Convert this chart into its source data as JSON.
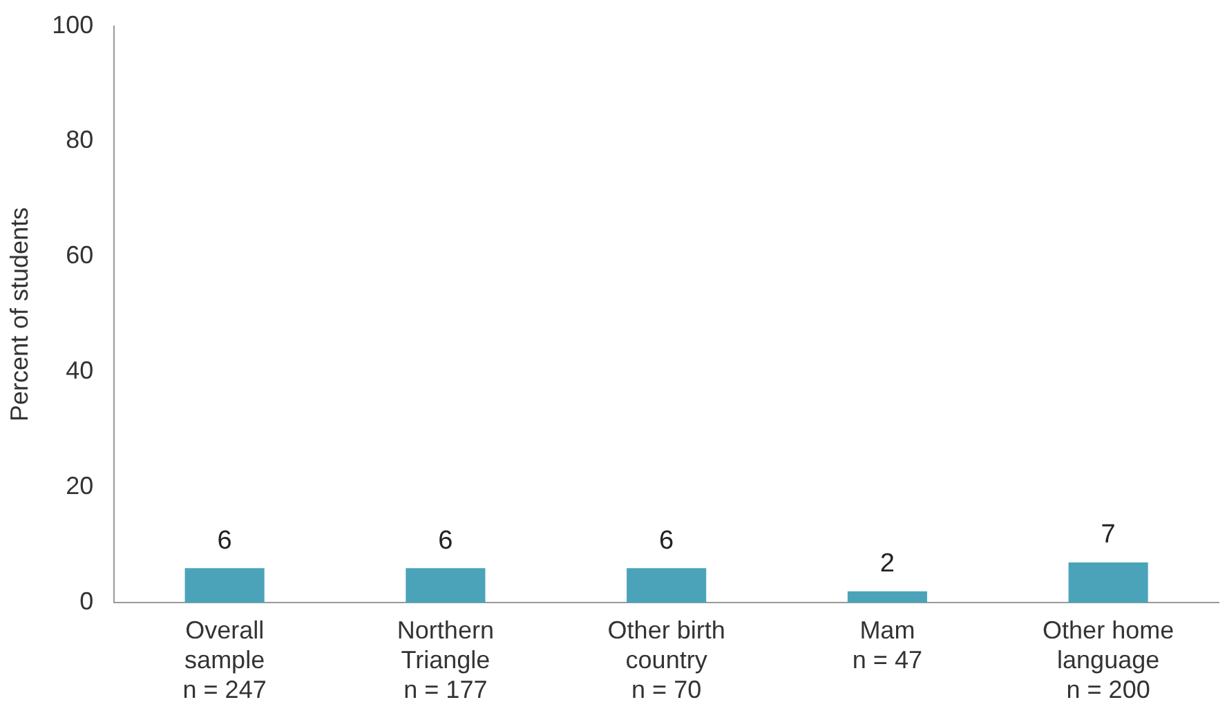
{
  "chart_data": {
    "type": "bar",
    "ylabel": "Percent of students",
    "categories": [
      "Overall\nsample\nn = 247",
      "Northern\nTriangle\nn = 177",
      "Other birth\ncountry\nn = 70",
      "Mam\nn = 47",
      "Other home\nlanguage\nn = 200"
    ],
    "values": [
      6,
      6,
      6,
      2,
      7
    ],
    "color": "#4ba3b9",
    "ylim": [
      0,
      100
    ],
    "yticks": [
      0,
      20,
      40,
      60,
      80,
      100
    ],
    "grid": false,
    "legend": false,
    "data_labels": true
  }
}
